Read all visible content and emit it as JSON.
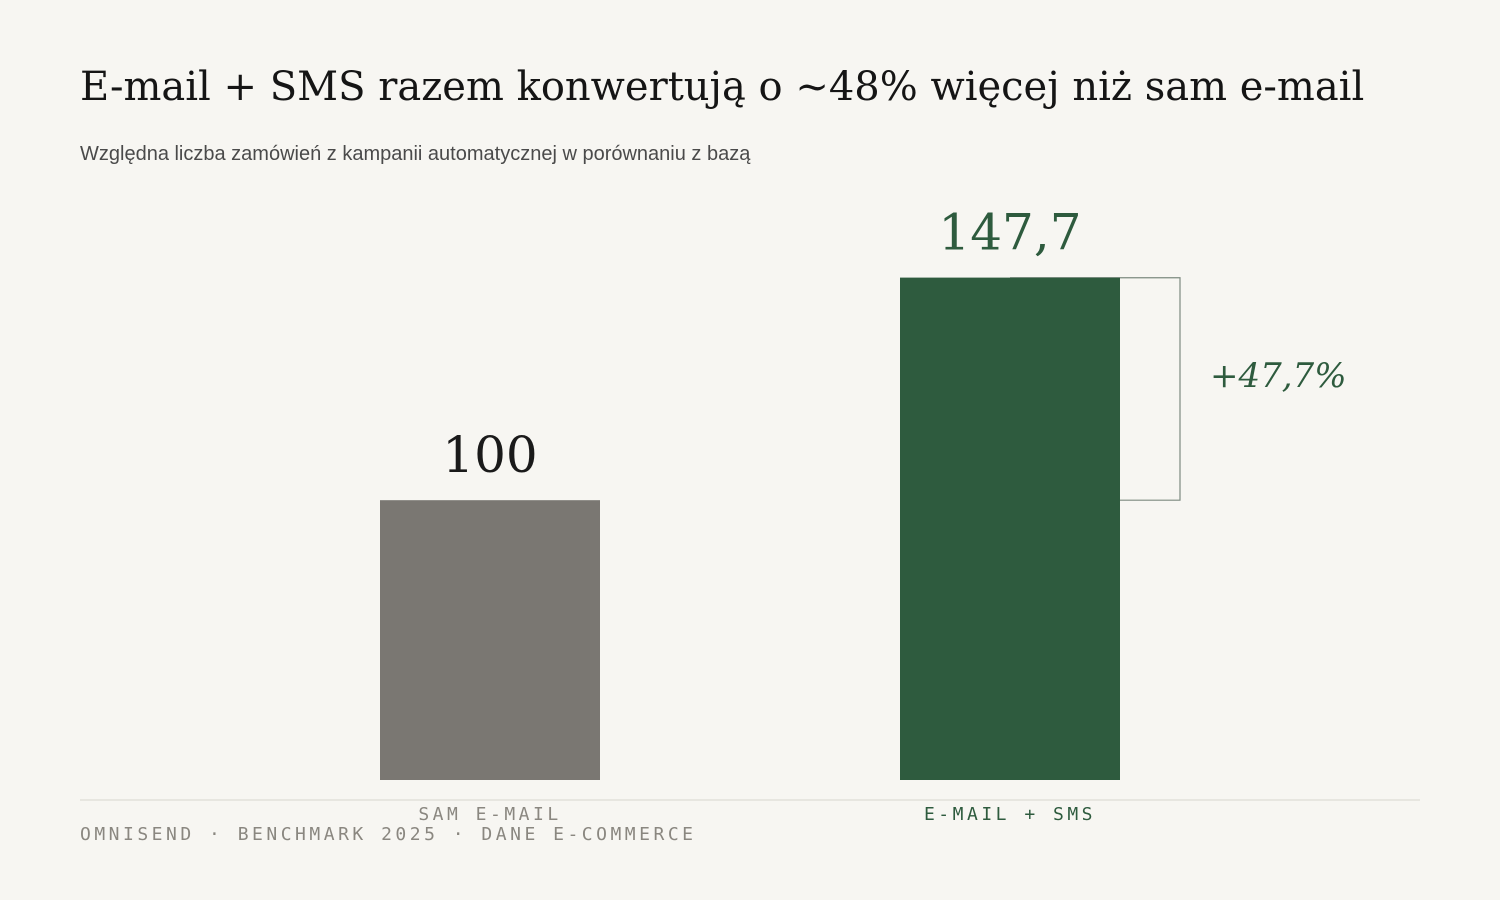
{
  "chart_data": {
    "type": "bar",
    "title": "E-mail + SMS razem konwertują o ~48% więcej niż sam e-mail",
    "subtitle": "Względna liczba zamówień z kampanii automatycznej w porównaniu z bazą",
    "categories": [
      "SAM E-MAIL",
      "E-MAIL + SMS"
    ],
    "values": [
      100,
      147.7
    ],
    "value_labels": [
      "100",
      "147,7"
    ],
    "colors": [
      "#7a7772",
      "#2e5b3e"
    ],
    "ylim": [
      40,
      150
    ],
    "annotation": "+47,7%",
    "footer": "OMNISEND · BENCHMARK 2025 · DANE E-COMMERCE"
  }
}
